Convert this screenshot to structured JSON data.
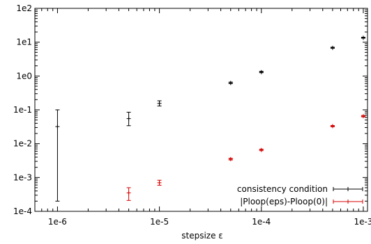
{
  "chart_data": {
    "type": "scatter",
    "title": "",
    "xlabel": "stepsize ε",
    "ylabel": "",
    "xscale": "log",
    "yscale": "log",
    "xlim": [
      6e-07,
      0.0011
    ],
    "ylim": [
      0.0001,
      100
    ],
    "x_ticks": [
      {
        "value": 1e-06,
        "label": "1e-6"
      },
      {
        "value": 1e-05,
        "label": "1e-5"
      },
      {
        "value": 0.0001,
        "label": "1e-4"
      },
      {
        "value": 0.001,
        "label": "1e-3"
      }
    ],
    "y_ticks": [
      {
        "value": 0.0001,
        "label": "1e-4"
      },
      {
        "value": 0.001,
        "label": "1e-3"
      },
      {
        "value": 0.01,
        "label": "1e-2"
      },
      {
        "value": 0.1,
        "label": "1e-1"
      },
      {
        "value": 1,
        "label": "1e0"
      },
      {
        "value": 10,
        "label": "1e1"
      },
      {
        "value": 100,
        "label": "1e2"
      }
    ],
    "grid": false,
    "legend_position": "bottom-right",
    "series": [
      {
        "name": "consistency condition",
        "color": "#000000",
        "points": [
          {
            "x": 1e-06,
            "y": 0.032,
            "ylow": 0.0002,
            "yhigh": 0.1
          },
          {
            "x": 5e-06,
            "y": 0.055,
            "ylow": 0.034,
            "yhigh": 0.085
          },
          {
            "x": 1e-05,
            "y": 0.155,
            "ylow": 0.13,
            "yhigh": 0.185
          },
          {
            "x": 5e-05,
            "y": 0.62,
            "ylow": 0.6,
            "yhigh": 0.66
          },
          {
            "x": 0.0001,
            "y": 1.3,
            "ylow": 1.25,
            "yhigh": 1.38
          },
          {
            "x": 0.0005,
            "y": 6.8,
            "ylow": 6.6,
            "yhigh": 7.1
          },
          {
            "x": 0.001,
            "y": 13.5,
            "ylow": 13.1,
            "yhigh": 14.0
          }
        ]
      },
      {
        "name": "|Ploop(eps)-Ploop(0)|",
        "color": "#d40000",
        "points": [
          {
            "x": 5e-06,
            "y": 0.00035,
            "ylow": 0.00021,
            "yhigh": 0.0005
          },
          {
            "x": 1e-05,
            "y": 0.0007,
            "ylow": 0.00059,
            "yhigh": 0.00083
          },
          {
            "x": 5e-05,
            "y": 0.0035,
            "ylow": 0.0033,
            "yhigh": 0.0037
          },
          {
            "x": 0.0001,
            "y": 0.0065,
            "ylow": 0.0062,
            "yhigh": 0.0069
          },
          {
            "x": 0.0005,
            "y": 0.033,
            "ylow": 0.0315,
            "yhigh": 0.0345
          },
          {
            "x": 0.001,
            "y": 0.065,
            "ylow": 0.062,
            "yhigh": 0.068
          }
        ]
      }
    ]
  }
}
